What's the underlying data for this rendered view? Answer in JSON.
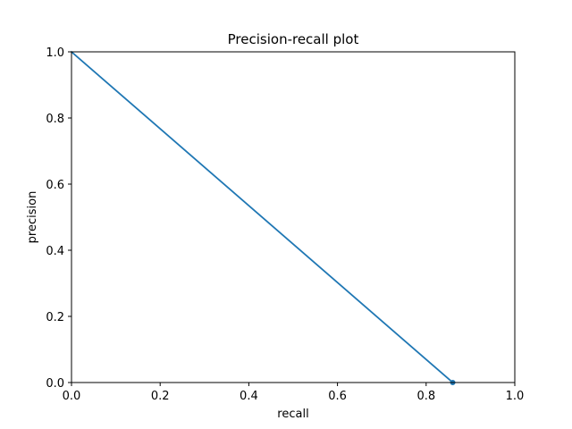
{
  "chart_data": {
    "type": "line",
    "title": "Precision-recall plot",
    "xlabel": "recall",
    "ylabel": "precision",
    "xlim": [
      0.0,
      1.0
    ],
    "ylim": [
      0.0,
      1.0
    ],
    "xticks": [
      "0.0",
      "0.2",
      "0.4",
      "0.6",
      "0.8",
      "1.0"
    ],
    "yticks": [
      "0.0",
      "0.2",
      "0.4",
      "0.6",
      "0.8",
      "1.0"
    ],
    "grid": false,
    "line_color": "#1f77b4",
    "series": [
      {
        "x": [
          0.0,
          0.86
        ],
        "y": [
          1.0,
          0.0
        ]
      }
    ],
    "markers": [
      {
        "x": 0.86,
        "y": 0.0
      }
    ]
  }
}
